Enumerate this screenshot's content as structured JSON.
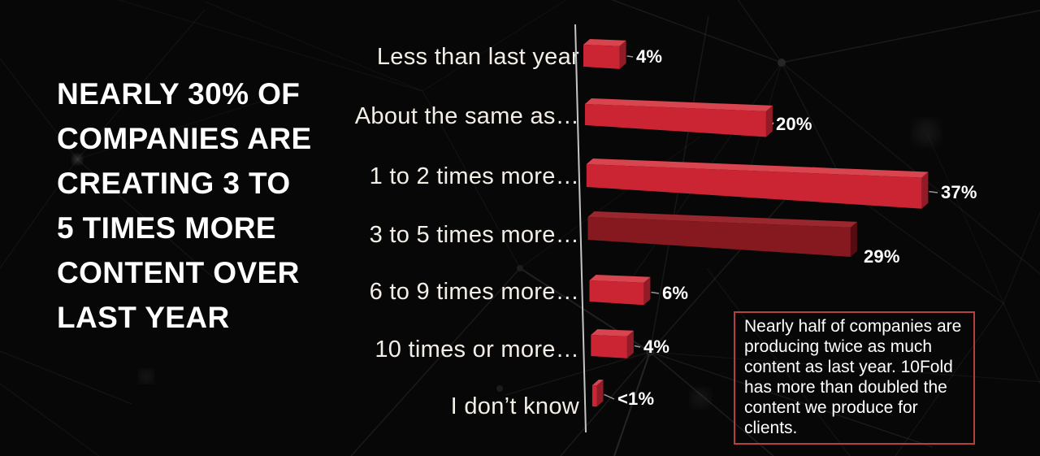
{
  "headline": {
    "lines": [
      "NEARLY 30% OF",
      "COMPANIES ARE",
      "CREATING 3 TO",
      "5 TIMES MORE",
      "CONTENT OVER",
      "LAST YEAR"
    ]
  },
  "chart_data": {
    "type": "bar",
    "orientation": "horizontal",
    "categories": [
      "Less than last year",
      "About the same as…",
      "1 to 2 times more…",
      "3 to 5 times more…",
      "6 to 9 times more…",
      "10 times or more…",
      "I don’t know"
    ],
    "values": [
      4,
      20,
      37,
      29,
      6,
      4,
      0.5
    ],
    "value_labels": [
      "4%",
      "20%",
      "37%",
      "29%",
      "6%",
      "4%",
      "<1%"
    ],
    "highlight_index": 3,
    "value_axis_labels_visible": false,
    "gridlines": false,
    "legend": null,
    "colors": {
      "bar_front": "#cb2433",
      "bar_top": "#d8454f",
      "bar_side": "#911b26",
      "highlight_front": "#861820",
      "highlight_top": "#9a262e",
      "highlight_side": "#550c11",
      "axis_line": "#c4c4c4",
      "leader_line": "#979797"
    }
  },
  "callout": {
    "text": "Nearly half of companies are producing twice as much content as last year. 10Fold has more than doubled the content we produce for clients.",
    "border_color": "#b5413a"
  },
  "background_color": "#070707"
}
